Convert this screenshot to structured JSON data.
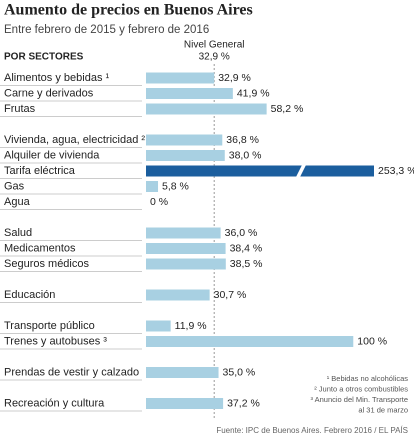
{
  "chart_data": {
    "type": "barh",
    "title": "Aumento de precios en Buenos Aires",
    "subtitle": "Entre febrero de 2015 y febrero de 2016",
    "axis_label": "POR SECTORES",
    "categories": [
      "Alimentos y bebidas ¹",
      "Carne y derivados",
      "Frutas",
      "Vivienda, agua, electricidad ²",
      "Alquiler de vivienda",
      "Tarifa eléctrica",
      "Gas",
      "Agua",
      "Salud",
      "Medicamentos",
      "Seguros médicos",
      "Educación",
      "Transporte público",
      "Trenes y autobuses ³",
      "Prendas de vestir y calzado",
      "Recreación y cultura"
    ],
    "values": [
      32.9,
      41.9,
      58.2,
      36.8,
      38.0,
      253.3,
      5.8,
      0,
      36.0,
      38.4,
      38.5,
      30.7,
      11.9,
      100,
      35.0,
      37.2
    ],
    "value_labels": [
      "32,9 %",
      "41,9 %",
      "58,2 %",
      "36,8 %",
      "38,0 %",
      "253,3 %",
      "5,8 %",
      "0 %",
      "36,0 %",
      "38,4 %",
      "38,5 %",
      "30,7 %",
      "11,9 %",
      "100 %",
      "35,0 %",
      "37,2 %"
    ],
    "colors": [
      "#a8d0e2",
      "#a8d0e2",
      "#a8d0e2",
      "#a8d0e2",
      "#a8d0e2",
      "#1b5e9e",
      "#a8d0e2",
      "#a8d0e2",
      "#a8d0e2",
      "#a8d0e2",
      "#a8d0e2",
      "#a8d0e2",
      "#a8d0e2",
      "#a8d0e2",
      "#a8d0e2",
      "#a8d0e2"
    ],
    "xlim": [
      0,
      110
    ],
    "reference": {
      "label": "Nivel General",
      "value": 32.9,
      "value_label": "32,9 %"
    },
    "notes": [
      "¹ Bebidas no alcohólicas",
      "² Junto a otros combustibles",
      "³ Anuncio del Min. Transporte",
      "al 31 de marzo"
    ],
    "source": "Fuente: IPC de Buenos Aires. Febrero 2016 / EL PAÍS"
  }
}
